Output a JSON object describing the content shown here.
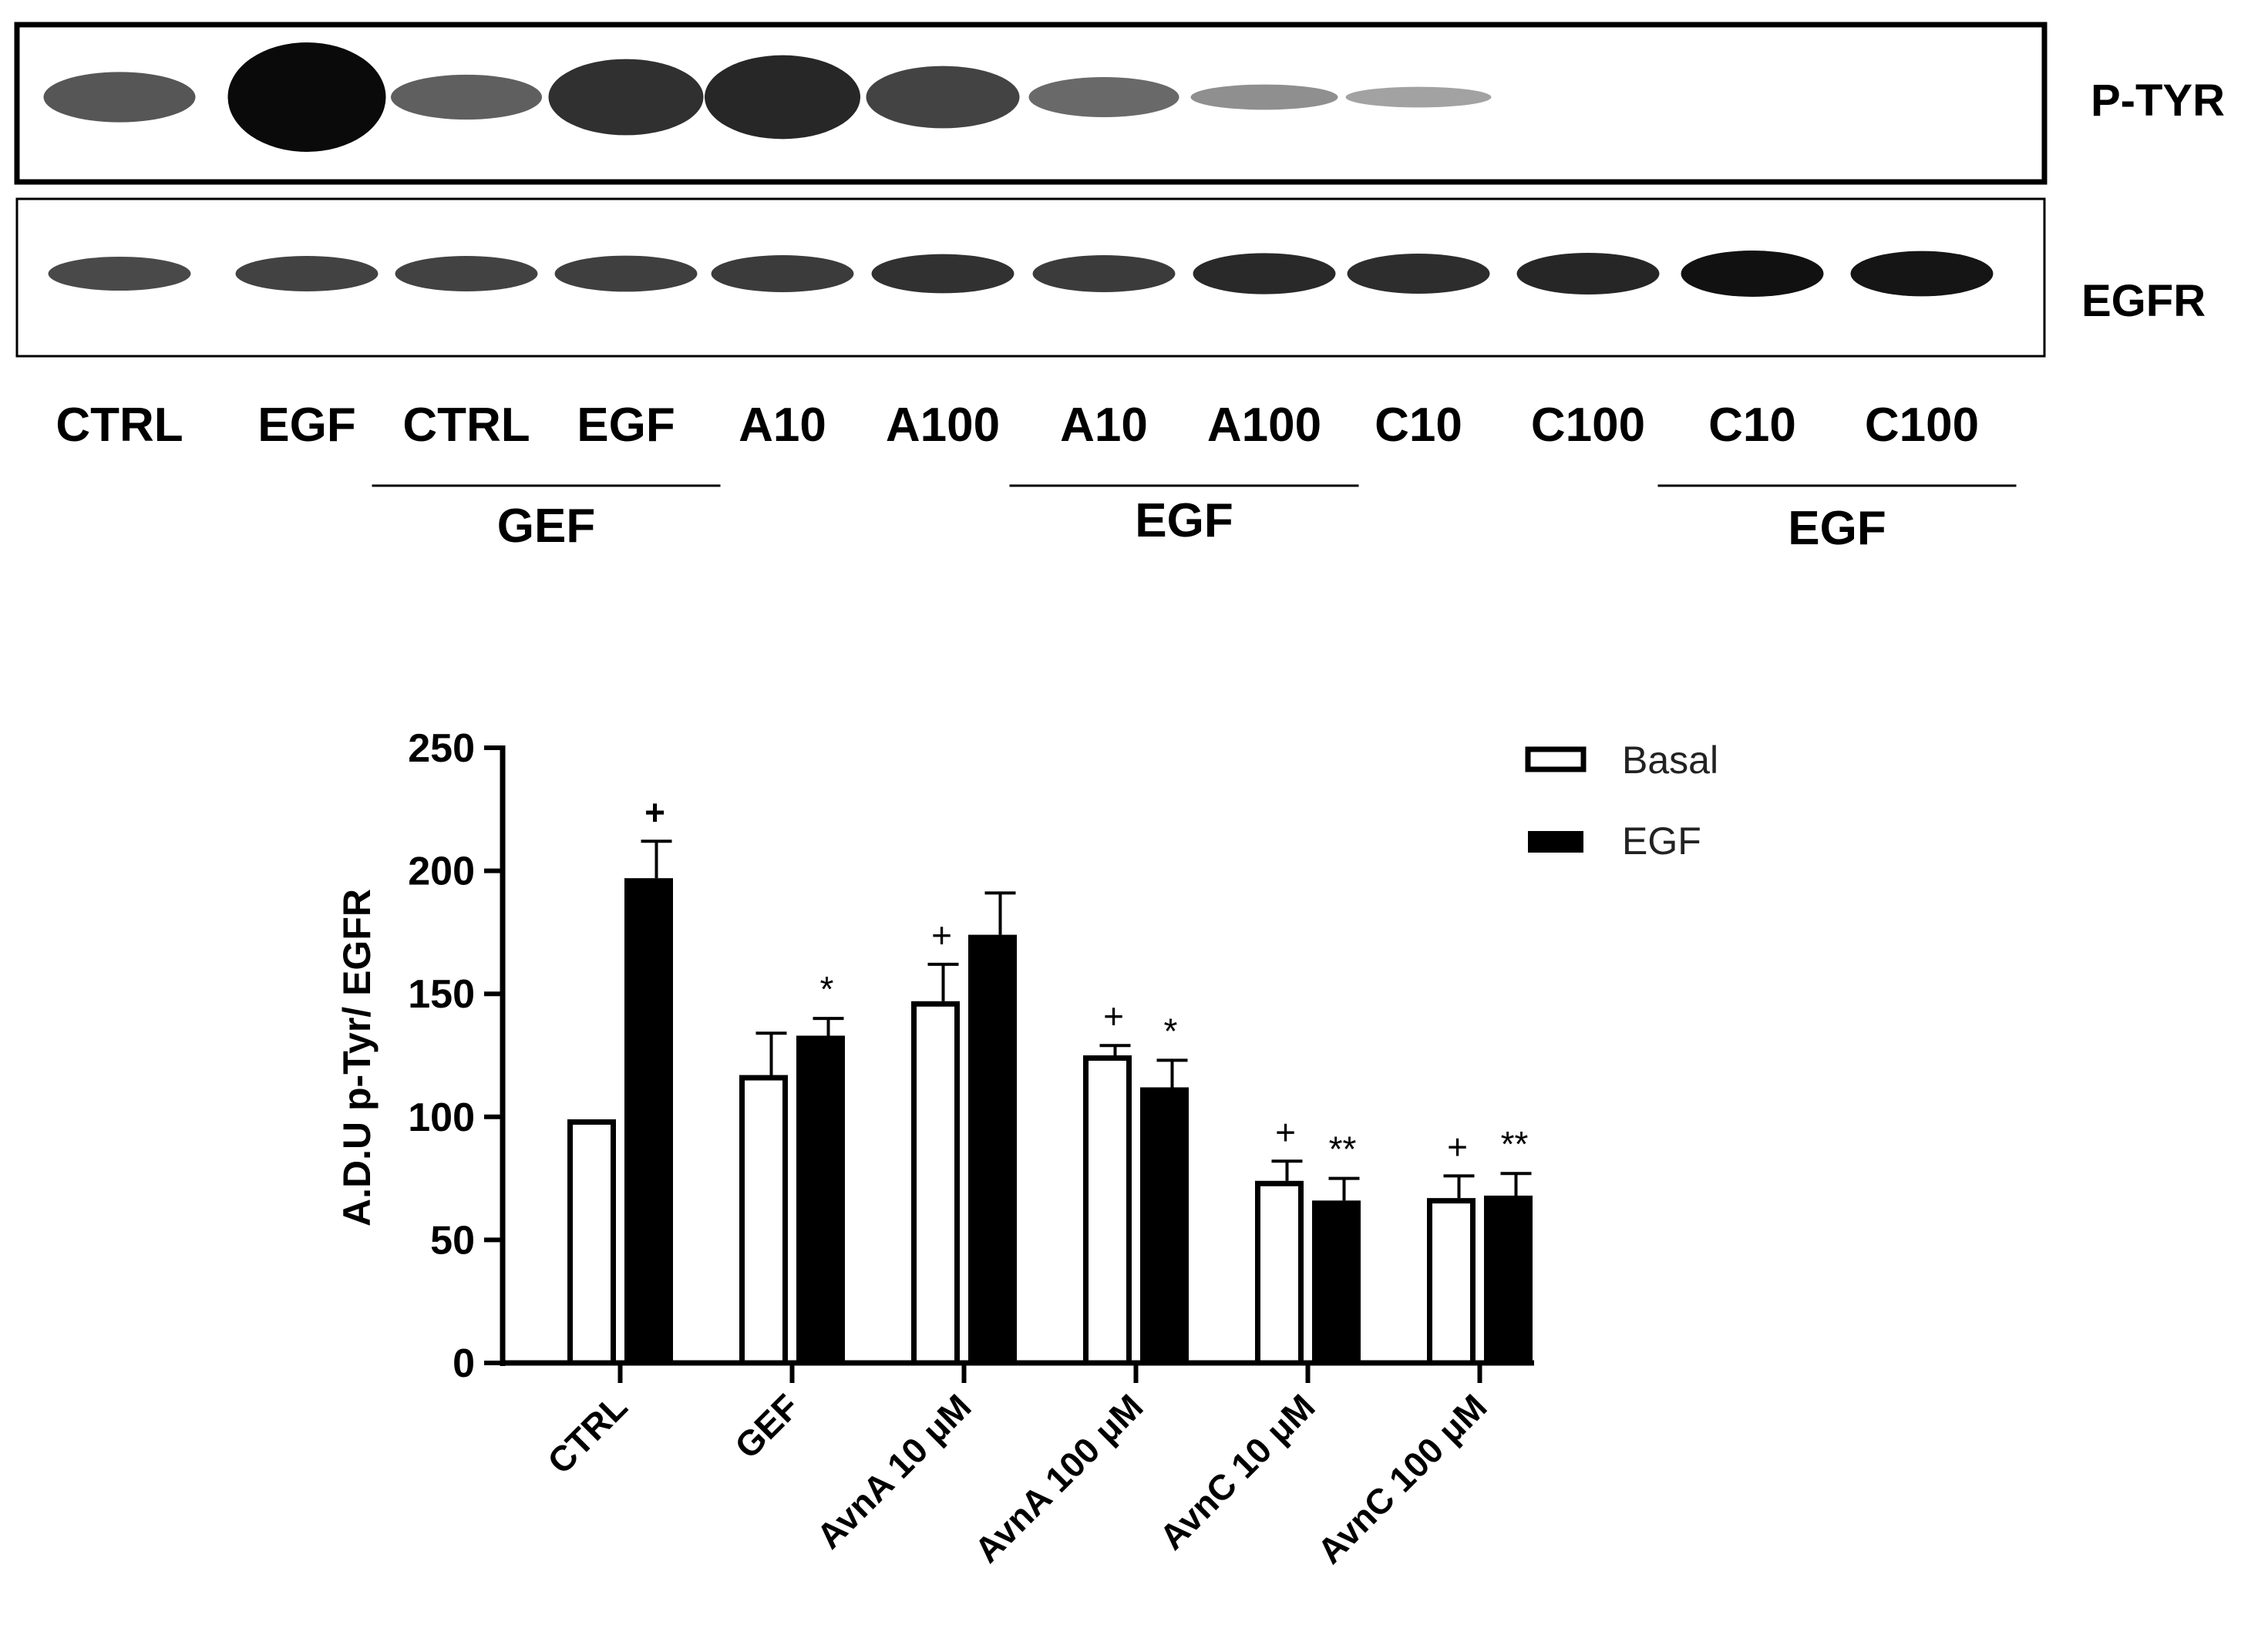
{
  "blot": {
    "rows": [
      {
        "label": "P-TYR"
      },
      {
        "label": "EGFR"
      }
    ],
    "lanes": [
      {
        "label": "CTRL",
        "ptyr": 0.6,
        "egfr": 0.55
      },
      {
        "label": "EGF",
        "ptyr": 1.0,
        "egfr": 0.6
      },
      {
        "label": "CTRL",
        "ptyr": 0.55,
        "egfr": 0.6
      },
      {
        "label": "EGF",
        "ptyr": 0.8,
        "egfr": 0.62
      },
      {
        "label": "A10",
        "ptyr": 0.85,
        "egfr": 0.65
      },
      {
        "label": "A100",
        "ptyr": 0.7,
        "egfr": 0.72
      },
      {
        "label": "A10",
        "ptyr": 0.5,
        "egfr": 0.65
      },
      {
        "label": "A100",
        "ptyr": 0.3,
        "egfr": 0.78
      },
      {
        "label": "C10",
        "ptyr": 0.2,
        "egfr": 0.75
      },
      {
        "label": "C100",
        "ptyr": 0.0,
        "egfr": 0.8
      },
      {
        "label": "C10",
        "ptyr": 0.0,
        "egfr": 0.95
      },
      {
        "label": "C100",
        "ptyr": 0.0,
        "egfr": 0.92
      }
    ],
    "groups": [
      {
        "label": "GEF",
        "from_lane": 2,
        "to_lane": 3
      },
      {
        "label": "EGF",
        "from_lane": 6,
        "to_lane": 7
      },
      {
        "label": "EGF",
        "from_lane": 10,
        "to_lane": 11
      }
    ]
  },
  "chart_data": {
    "type": "bar",
    "ylabel": "A.D.U p-Tyr/ EGFR",
    "xlabel": "",
    "ylim": [
      0,
      250
    ],
    "yticks": [
      0,
      50,
      100,
      150,
      200,
      250
    ],
    "categories": [
      "CTRL",
      "GEF",
      "AvnA 10 μM",
      "AvnA 100 μM",
      "AvnC 10 μM",
      "AvnC 100 μM"
    ],
    "series": [
      {
        "name": "Basal",
        "fill": "#ffffff",
        "values": [
          99,
          117,
          147,
          125,
          74,
          67
        ],
        "errors": [
          0,
          17,
          15,
          4,
          8,
          9
        ],
        "annotations": [
          "",
          "",
          "+",
          "+",
          "+",
          "+"
        ]
      },
      {
        "name": "EGF",
        "fill": "#000000",
        "values": [
          197,
          133,
          174,
          112,
          66,
          68
        ],
        "errors": [
          15,
          7,
          17,
          11,
          9,
          9
        ],
        "annotations": [
          "+",
          "*",
          "",
          "*",
          "**",
          "**"
        ]
      }
    ],
    "legend": {
      "position": "top-right"
    },
    "grid": false
  }
}
